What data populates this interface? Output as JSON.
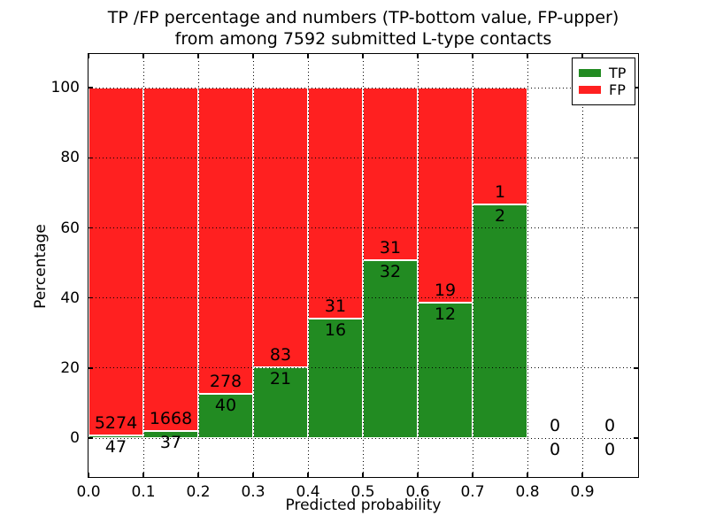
{
  "chart_data": {
    "type": "bar",
    "stacked": true,
    "title_line1": "TP /FP percentage and numbers (TP-bottom value, FP-upper)",
    "title_line2": "from among 7592 submitted L-type contacts",
    "xlabel": "Predicted probability",
    "ylabel": "Percentage",
    "xlim": [
      0.0,
      1.0
    ],
    "ylim": [
      -10.8,
      109.6
    ],
    "x_ticks": [
      "0.0",
      "0.1",
      "0.2",
      "0.3",
      "0.4",
      "0.5",
      "0.6",
      "0.7",
      "0.8",
      "0.9"
    ],
    "y_ticks": [
      0,
      20,
      40,
      60,
      80,
      100
    ],
    "bin_width": 0.1,
    "bin_starts": [
      0.0,
      0.1,
      0.2,
      0.3,
      0.4,
      0.5,
      0.6,
      0.7,
      0.8,
      0.9
    ],
    "grid": true,
    "legend_position": "upper right",
    "bar_edge_color": "#ffffff",
    "series": [
      {
        "name": "TP",
        "color": "#228b22",
        "counts": [
          47,
          37,
          40,
          21,
          16,
          32,
          12,
          2,
          0,
          0
        ],
        "pct": [
          0.88,
          2.17,
          12.58,
          20.19,
          34.04,
          50.79,
          38.71,
          66.67,
          0,
          0
        ]
      },
      {
        "name": "FP",
        "color": "#ff2020",
        "counts": [
          5274,
          1668,
          278,
          83,
          31,
          31,
          19,
          1,
          0,
          0
        ],
        "pct": [
          99.12,
          97.83,
          87.42,
          79.81,
          65.96,
          49.21,
          61.29,
          33.33,
          0,
          0
        ]
      }
    ]
  }
}
